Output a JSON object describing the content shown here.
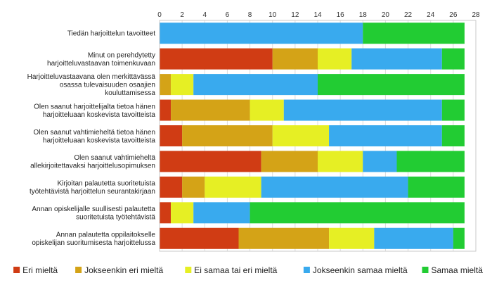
{
  "chart_data": {
    "type": "bar",
    "orientation": "horizontal",
    "stacked": true,
    "title": "",
    "xlabel": "",
    "ylabel": "",
    "xlim": [
      0,
      28
    ],
    "xticks": [
      0,
      2,
      4,
      6,
      8,
      10,
      12,
      14,
      16,
      18,
      20,
      22,
      24,
      26,
      28
    ],
    "grid": true,
    "legend_position": "bottom",
    "categories": [
      [
        "Tiedän harjoittelun tavoitteet"
      ],
      [
        "Minut on perehdytetty",
        "harjoitteluvastaavan toimenkuvaan"
      ],
      [
        "Harjoitteluvastaavana olen merkittävässä",
        "osassa tulevaisuuden osaajien",
        "kouluttamisessa"
      ],
      [
        "Olen saanut harjoittelijalta tietoa hänen",
        "harjoitteluaan koskevista tavoitteista"
      ],
      [
        "Olen saanut vahtimieheltä tietoa hänen",
        "harjoitteluaan koskevista tavoitteista"
      ],
      [
        "Olen saanut vahtimieheltä",
        "allekirjoitettavaksi harjoittelusopimuksen"
      ],
      [
        "Kirjoitan palautetta suoritetuista",
        "työtehtävistä harjoittelun seurantakirjaan"
      ],
      [
        "Annan opiskelijalle suullisesti palautetta",
        "suoritetuista työtehtävistä"
      ],
      [
        "Annan palautetta oppilaitokselle",
        "opiskelijan suoritumisesta harjoittelussa"
      ]
    ],
    "series": [
      {
        "name": "Eri mieltä",
        "color": "#d03c14",
        "values": [
          0,
          10,
          0,
          1,
          2,
          9,
          2,
          1,
          7
        ]
      },
      {
        "name": "Jokseenkin eri mieltä",
        "color": "#d4a317",
        "values": [
          0,
          4,
          1,
          7,
          8,
          5,
          2,
          0,
          8
        ]
      },
      {
        "name": "Ei samaa tai eri mieltä",
        "color": "#e6ef24",
        "values": [
          0,
          3,
          2,
          3,
          5,
          4,
          5,
          2,
          4
        ]
      },
      {
        "name": "Jokseenkin samaa mieltä",
        "color": "#39aaee",
        "values": [
          18,
          8,
          11,
          14,
          10,
          3,
          13,
          5,
          7
        ]
      },
      {
        "name": "Samaa mieltä",
        "color": "#22cc33",
        "values": [
          9,
          2,
          13,
          2,
          2,
          6,
          5,
          19,
          1
        ]
      }
    ]
  }
}
